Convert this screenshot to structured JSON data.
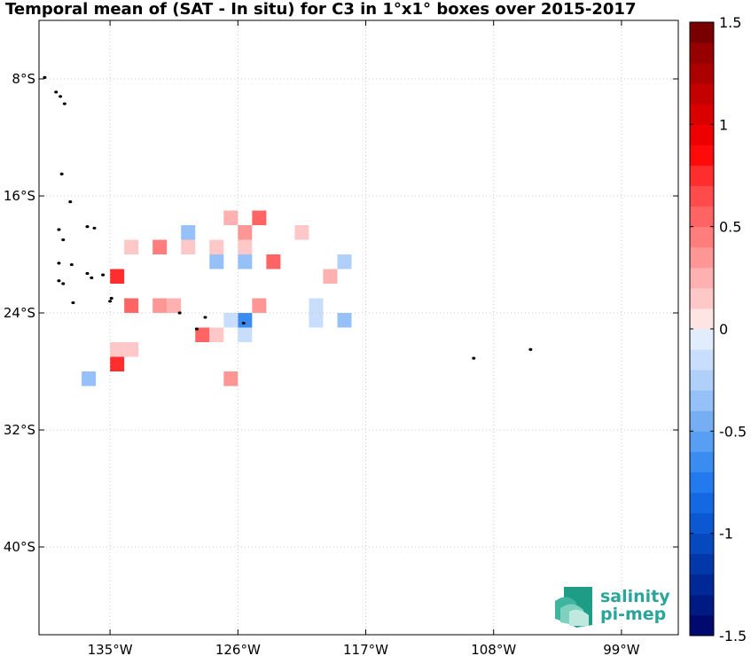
{
  "chart_data": {
    "type": "heatmap",
    "title": "Temporal mean of (SAT - In situ) for C3 in 1°x1° boxes over 2015-2017",
    "xlabel": "",
    "ylabel": "",
    "x_range_lon": [
      -140,
      -95
    ],
    "y_range_lat": [
      -46,
      -4
    ],
    "x_ticks": [
      {
        "value": -135,
        "label": "135°W"
      },
      {
        "value": -126,
        "label": "126°W"
      },
      {
        "value": -117,
        "label": "117°W"
      },
      {
        "value": -108,
        "label": "108°W"
      },
      {
        "value": -99,
        "label": "99°W"
      }
    ],
    "y_ticks": [
      {
        "value": -8,
        "label": "8°S"
      },
      {
        "value": -16,
        "label": "16°S"
      },
      {
        "value": -24,
        "label": "24°S"
      },
      {
        "value": -32,
        "label": "32°S"
      },
      {
        "value": -40,
        "label": "40°S"
      }
    ],
    "grid": true,
    "colorbar": {
      "range": [
        -1.5,
        1.5
      ],
      "levels": 30,
      "ticks": [
        {
          "value": 1.5,
          "label": "1.5"
        },
        {
          "value": 1,
          "label": "1"
        },
        {
          "value": 0.5,
          "label": "0.5"
        },
        {
          "value": 0,
          "label": "0"
        },
        {
          "value": -0.5,
          "label": "-0.5"
        },
        {
          "value": -1,
          "label": "-1"
        },
        {
          "value": -1.5,
          "label": "-1.5"
        }
      ],
      "position": "right"
    },
    "boxes": [
      {
        "lon": -126.5,
        "lat": -17.5,
        "value": 0.25
      },
      {
        "lon": -124.5,
        "lat": -17.5,
        "value": 0.55
      },
      {
        "lon": -129.5,
        "lat": -18.5,
        "value": -0.35
      },
      {
        "lon": -125.5,
        "lat": -18.5,
        "value": 0.3
      },
      {
        "lon": -121.5,
        "lat": -18.5,
        "value": 0.15
      },
      {
        "lon": -133.5,
        "lat": -19.5,
        "value": 0.12
      },
      {
        "lon": -131.5,
        "lat": -19.5,
        "value": 0.45
      },
      {
        "lon": -129.5,
        "lat": -19.5,
        "value": 0.15
      },
      {
        "lon": -127.5,
        "lat": -19.5,
        "value": 0.15
      },
      {
        "lon": -125.5,
        "lat": -19.5,
        "value": 0.12
      },
      {
        "lon": -127.5,
        "lat": -20.5,
        "value": -0.38
      },
      {
        "lon": -125.5,
        "lat": -20.5,
        "value": -0.3
      },
      {
        "lon": -123.5,
        "lat": -20.5,
        "value": 0.55
      },
      {
        "lon": -118.5,
        "lat": -20.5,
        "value": -0.25
      },
      {
        "lon": -119.5,
        "lat": -21.5,
        "value": 0.2
      },
      {
        "lon": -134.5,
        "lat": -21.5,
        "value": 0.7
      },
      {
        "lon": -133.5,
        "lat": -23.5,
        "value": 0.55
      },
      {
        "lon": -131.5,
        "lat": -23.5,
        "value": 0.3
      },
      {
        "lon": -130.5,
        "lat": -23.5,
        "value": 0.2
      },
      {
        "lon": -124.5,
        "lat": -23.5,
        "value": 0.3
      },
      {
        "lon": -120.5,
        "lat": -23.5,
        "value": -0.15
      },
      {
        "lon": -126.5,
        "lat": -24.5,
        "value": -0.2
      },
      {
        "lon": -125.5,
        "lat": -24.5,
        "value": -0.65
      },
      {
        "lon": -120.5,
        "lat": -24.5,
        "value": -0.12
      },
      {
        "lon": -118.5,
        "lat": -24.5,
        "value": -0.4
      },
      {
        "lon": -128.5,
        "lat": -25.5,
        "value": 0.55
      },
      {
        "lon": -127.5,
        "lat": -25.5,
        "value": 0.15
      },
      {
        "lon": -125.5,
        "lat": -25.5,
        "value": -0.12
      },
      {
        "lon": -134.5,
        "lat": -26.5,
        "value": 0.18
      },
      {
        "lon": -133.5,
        "lat": -26.5,
        "value": 0.18
      },
      {
        "lon": -134.5,
        "lat": -27.5,
        "value": 0.75
      },
      {
        "lon": -136.5,
        "lat": -28.5,
        "value": -0.38
      },
      {
        "lon": -126.5,
        "lat": -28.5,
        "value": 0.3
      }
    ],
    "land_points": [
      [
        -139.6,
        -7.9
      ],
      [
        -138.8,
        -8.9
      ],
      [
        -138.5,
        -9.2
      ],
      [
        -138.2,
        -9.7
      ],
      [
        -138.4,
        -14.5
      ],
      [
        -137.8,
        -16.4
      ],
      [
        -136.6,
        -18.1
      ],
      [
        -136.1,
        -18.2
      ],
      [
        -138.6,
        -18.3
      ],
      [
        -138.3,
        -19.0
      ],
      [
        -138.6,
        -20.6
      ],
      [
        -137.7,
        -20.7
      ],
      [
        -136.6,
        -21.3
      ],
      [
        -136.3,
        -21.6
      ],
      [
        -135.5,
        -21.4
      ],
      [
        -138.6,
        -21.8
      ],
      [
        -138.3,
        -22.0
      ],
      [
        -137.6,
        -23.3
      ],
      [
        -135.0,
        -23.2
      ],
      [
        -134.9,
        -23.0
      ],
      [
        -130.1,
        -24.0
      ],
      [
        -128.3,
        -24.3
      ],
      [
        -128.9,
        -25.1
      ],
      [
        -125.6,
        -24.7
      ],
      [
        -109.4,
        -27.1
      ],
      [
        -105.4,
        -26.5
      ]
    ]
  },
  "logo": {
    "line1": "salinity",
    "line2": "pi-mep"
  }
}
